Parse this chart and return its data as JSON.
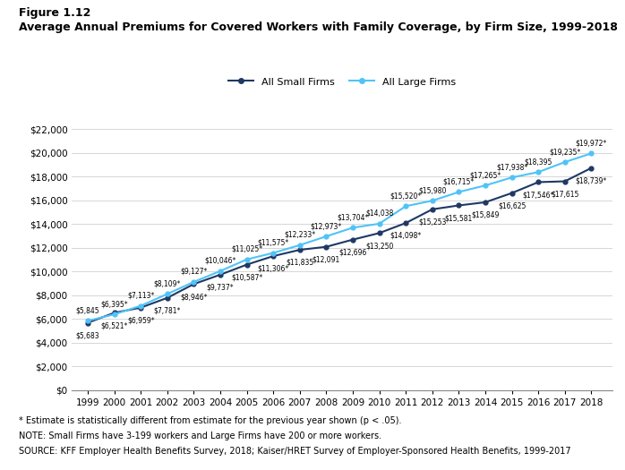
{
  "years": [
    1999,
    2000,
    2001,
    2002,
    2003,
    2004,
    2005,
    2006,
    2007,
    2008,
    2009,
    2010,
    2011,
    2012,
    2013,
    2014,
    2015,
    2016,
    2017,
    2018
  ],
  "small_firms": [
    5683,
    6521,
    6959,
    7781,
    8946,
    9737,
    10587,
    11306,
    11835,
    12091,
    12696,
    13250,
    14098,
    15253,
    15581,
    15849,
    16625,
    17546,
    17615,
    18739
  ],
  "large_firms": [
    5845,
    6395,
    7113,
    8109,
    9127,
    10046,
    11025,
    11575,
    12233,
    12973,
    13704,
    14038,
    15520,
    15980,
    16715,
    17265,
    17938,
    18395,
    19235,
    19972
  ],
  "small_labels": [
    "$5,683",
    "$6,521*",
    "$6,959*",
    "$7,781*",
    "$8,946*",
    "$9,737*",
    "$10,587*",
    "$11,306*",
    "$11,835",
    "$12,091",
    "$12,696",
    "$13,250",
    "$14,098*",
    "$15,253",
    "$15,581",
    "$15,849",
    "$16,625",
    "$17,546*",
    "$17,615",
    "$18,739*"
  ],
  "large_labels": [
    "$5,845",
    "$6,395*",
    "$7,113*",
    "$8,109*",
    "$9,127*",
    "$10,046*",
    "$11,025*",
    "$11,575*",
    "$12,233*",
    "$12,973*",
    "$13,704*",
    "$14,038",
    "$15,520*",
    "$15,980",
    "$16,715*",
    "$17,265*",
    "$17,938*",
    "$18,395",
    "$19,235*",
    "$19,972*"
  ],
  "small_color": "#1f3864",
  "large_color": "#4fc3f7",
  "title_line1": "Figure 1.12",
  "title_line2": "Average Annual Premiums for Covered Workers with Family Coverage, by Firm Size, 1999-2018",
  "legend_small": "All Small Firms",
  "legend_large": "All Large Firms",
  "footnote1": "* Estimate is statistically different from estimate for the previous year shown (p < .05).",
  "footnote2": "NOTE: Small Firms have 3-199 workers and Large Firms have 200 or more workers.",
  "footnote3": "SOURCE: KFF Employer Health Benefits Survey, 2018; Kaiser/HRET Survey of Employer-Sponsored Health Benefits, 1999-2017",
  "ylim": [
    0,
    23000
  ],
  "yticks": [
    0,
    2000,
    4000,
    6000,
    8000,
    10000,
    12000,
    14000,
    16000,
    18000,
    20000,
    22000
  ]
}
